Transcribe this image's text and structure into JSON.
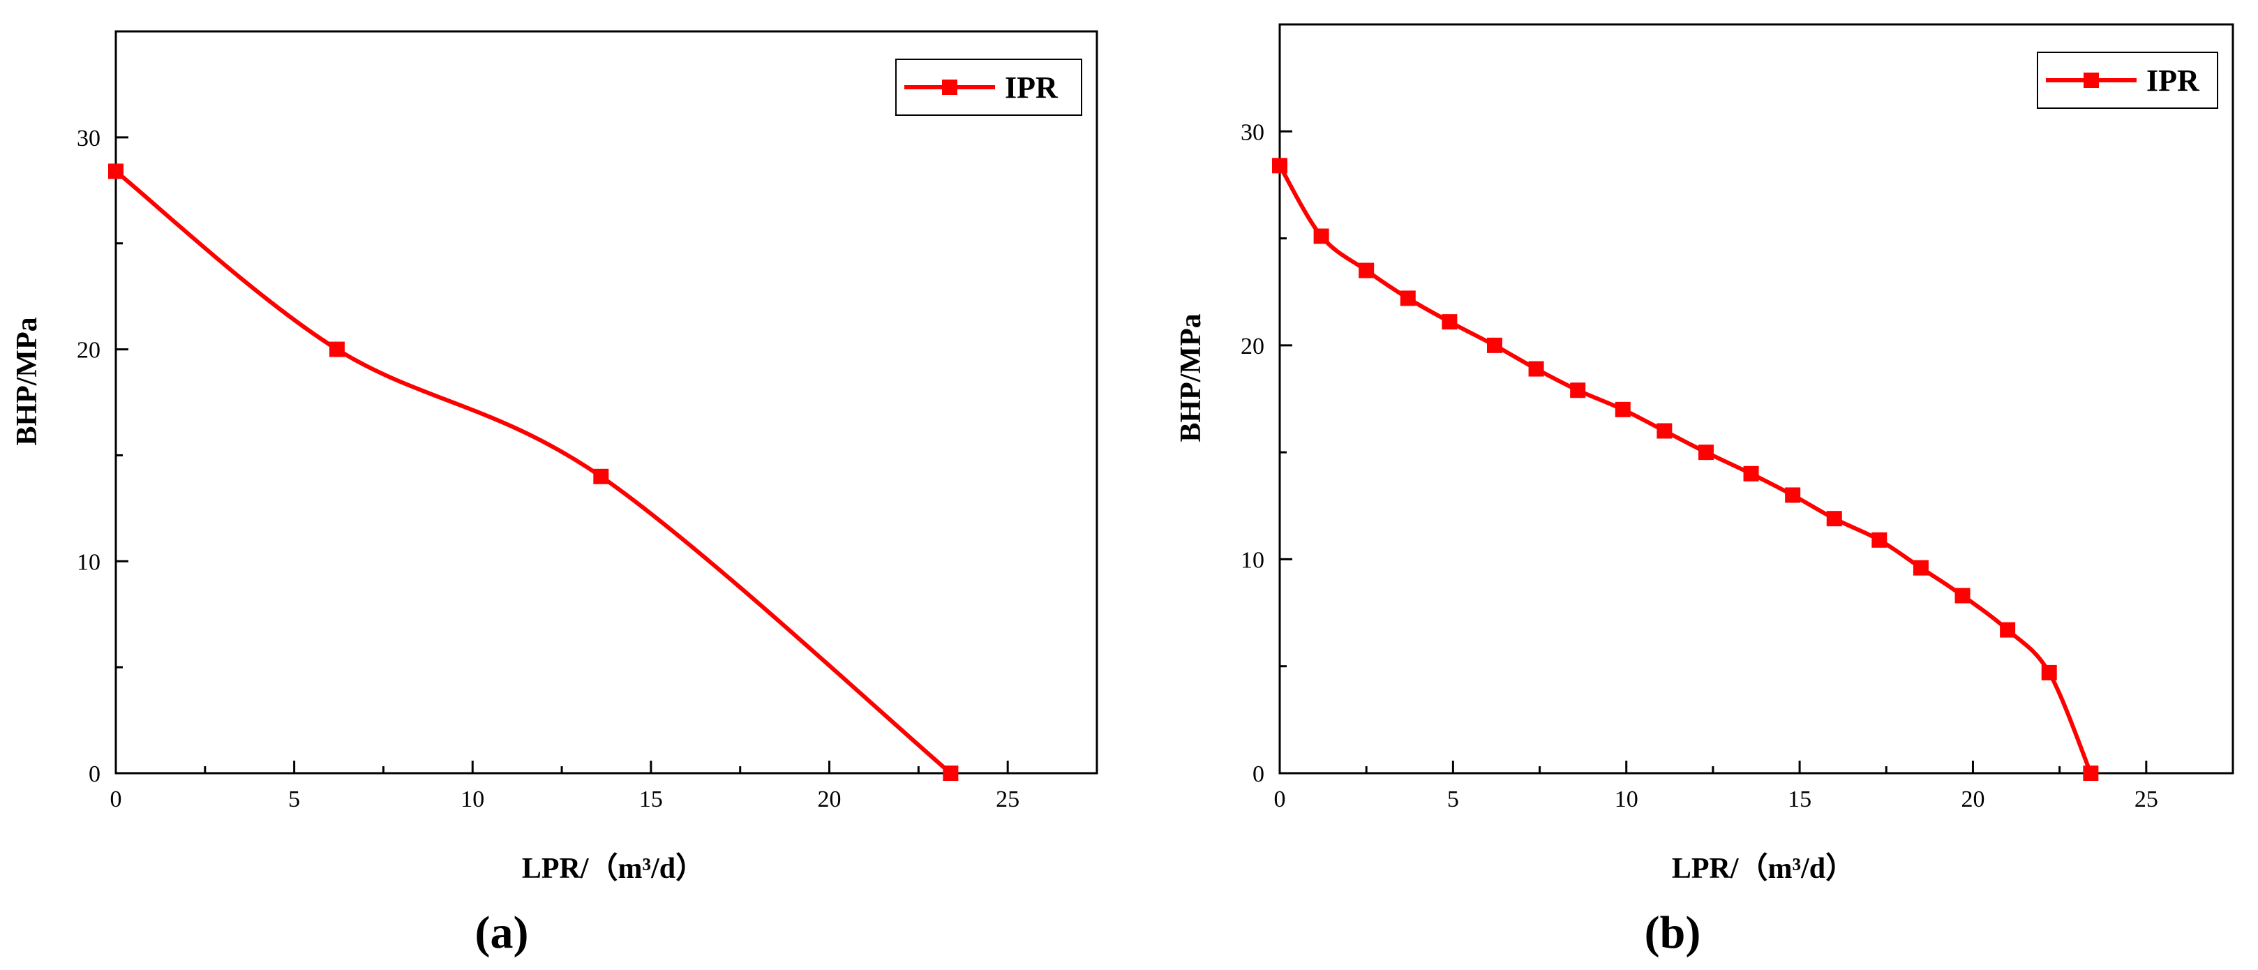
{
  "chart_data": [
    {
      "type": "line",
      "panel_label": "(a)",
      "xlabel": "LPR/（m³/d）",
      "ylabel": "BHP/MPa",
      "xlim": [
        0,
        27.5
      ],
      "ylim": [
        0,
        35
      ],
      "x_ticks": [
        0,
        5,
        10,
        15,
        20,
        25
      ],
      "y_ticks": [
        0,
        10,
        20,
        30
      ],
      "grid": false,
      "legend_position": "top-right",
      "series": [
        {
          "name": "IPR",
          "color": "#ff0000",
          "marker": "square",
          "smooth": true,
          "x": [
            0,
            6.2,
            13.6,
            23.4
          ],
          "y": [
            28.4,
            20.0,
            14.0,
            0.0
          ]
        }
      ]
    },
    {
      "type": "line",
      "panel_label": "(b)",
      "xlabel": "LPR/（m³/d）",
      "ylabel": "BHP/MPa",
      "xlim": [
        0,
        27.5
      ],
      "ylim": [
        0,
        35
      ],
      "x_ticks": [
        0,
        5,
        10,
        15,
        20,
        25
      ],
      "y_ticks": [
        0,
        10,
        20,
        30
      ],
      "grid": false,
      "legend_position": "top-right",
      "series": [
        {
          "name": "IPR",
          "color": "#ff0000",
          "marker": "square",
          "smooth": true,
          "x": [
            0,
            1.2,
            2.5,
            3.7,
            4.9,
            6.2,
            7.4,
            8.6,
            9.9,
            11.1,
            12.3,
            13.6,
            14.8,
            16.0,
            17.3,
            18.5,
            19.7,
            21.0,
            22.2,
            23.4
          ],
          "y": [
            28.4,
            25.1,
            23.5,
            22.2,
            21.1,
            20.0,
            18.9,
            17.9,
            17.0,
            16.0,
            15.0,
            14.0,
            13.0,
            11.9,
            10.9,
            9.6,
            8.3,
            6.7,
            4.7,
            0.0
          ]
        }
      ]
    }
  ]
}
